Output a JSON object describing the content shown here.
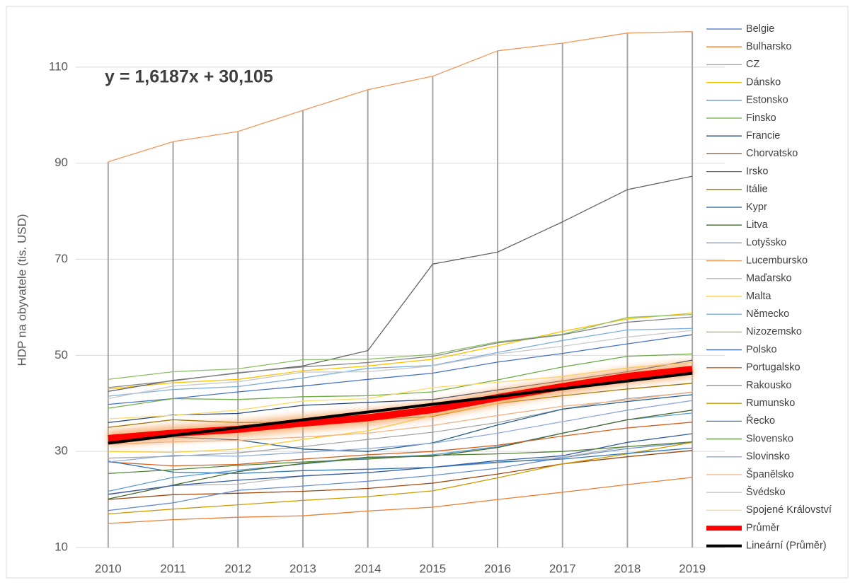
{
  "chart_data": {
    "type": "line",
    "y_label": "HDP na obyvatele (tis. USD)",
    "annotation": "y = 1,6187x + 30,105",
    "categories": [
      "2010",
      "2011",
      "2012",
      "2013",
      "2014",
      "2015",
      "2016",
      "2017",
      "2018",
      "2019"
    ],
    "ylim": [
      10,
      120
    ],
    "yticks": [
      10,
      30,
      50,
      70,
      90,
      110
    ],
    "grid": true,
    "drop_lines": true,
    "legend": "right",
    "series": [
      {
        "name": "Belgie",
        "color": "#4472C4",
        "values": [
          39.8,
          41.0,
          42.4,
          43.6,
          45.0,
          46.3,
          48.6,
          50.4,
          52.4,
          54.3
        ]
      },
      {
        "name": "Bulharsko",
        "color": "#ED7D31",
        "values": [
          15.0,
          15.8,
          16.3,
          16.6,
          17.6,
          18.4,
          20.0,
          21.5,
          23.1,
          24.6
        ]
      },
      {
        "name": "CZ",
        "color": "#A5A5A5",
        "values": [
          28.6,
          29.0,
          29.7,
          31.0,
          32.5,
          34.0,
          36.0,
          38.8,
          41.0,
          42.3
        ]
      },
      {
        "name": "Dánsko",
        "color": "#FFC000",
        "values": [
          43.0,
          44.3,
          45.0,
          46.8,
          47.8,
          49.2,
          52.0,
          55.0,
          57.6,
          58.8
        ]
      },
      {
        "name": "Estonsko",
        "color": "#5B9BD5",
        "values": [
          21.7,
          24.6,
          26.1,
          27.4,
          28.6,
          29.3,
          31.0,
          33.8,
          36.6,
          38.0
        ]
      },
      {
        "name": "Finsko",
        "color": "#70AD47",
        "values": [
          39.0,
          41.0,
          40.8,
          41.4,
          41.6,
          42.4,
          44.9,
          47.6,
          49.8,
          50.3
        ]
      },
      {
        "name": "Francie",
        "color": "#264478",
        "values": [
          36.0,
          37.6,
          37.9,
          39.6,
          40.2,
          40.8,
          42.8,
          44.7,
          46.6,
          49.0
        ]
      },
      {
        "name": "Chorvatsko",
        "color": "#9E480E",
        "values": [
          20.0,
          21.0,
          21.3,
          21.7,
          22.3,
          23.4,
          25.3,
          27.4,
          28.9,
          30.2
        ]
      },
      {
        "name": "Irsko",
        "color": "#636363",
        "values": [
          42.5,
          44.8,
          46.3,
          47.8,
          51.0,
          69.0,
          71.5,
          77.8,
          84.5,
          87.3
        ]
      },
      {
        "name": "Itálie",
        "color": "#997300",
        "values": [
          35.0,
          36.6,
          36.0,
          36.1,
          36.5,
          37.3,
          40.0,
          41.6,
          43.0,
          44.2
        ]
      },
      {
        "name": "Kypr",
        "color": "#255E91",
        "values": [
          32.0,
          33.0,
          32.4,
          30.5,
          30.0,
          31.8,
          35.5,
          38.8,
          40.4,
          41.8
        ]
      },
      {
        "name": "Litva",
        "color": "#43682B",
        "values": [
          20.1,
          23.0,
          25.8,
          27.5,
          28.8,
          29.0,
          30.8,
          33.8,
          36.6,
          38.6
        ]
      },
      {
        "name": "Lotyšsko",
        "color": "#698ED0",
        "values": [
          17.7,
          19.3,
          21.9,
          22.8,
          23.8,
          25.0,
          26.5,
          28.7,
          30.6,
          31.9
        ]
      },
      {
        "name": "Lucembursko",
        "color": "#F1975A",
        "values": [
          90.3,
          94.5,
          96.6,
          101.0,
          105.3,
          108.1,
          113.4,
          115.0,
          117.1,
          117.4
        ]
      },
      {
        "name": "Maďarsko",
        "color": "#B7B7B7",
        "values": [
          21.0,
          22.9,
          23.2,
          24.9,
          25.6,
          26.7,
          27.6,
          28.8,
          31.0,
          32.0
        ]
      },
      {
        "name": "Malta",
        "color": "#FFCD33",
        "values": [
          30.0,
          29.8,
          30.5,
          32.5,
          34.3,
          37.5,
          40.0,
          43.0,
          46.0,
          47.5
        ]
      },
      {
        "name": "Německo",
        "color": "#7CAFDD",
        "values": [
          41.5,
          42.9,
          43.5,
          45.3,
          47.3,
          47.9,
          50.6,
          53.1,
          55.3,
          55.6
        ]
      },
      {
        "name": "Nizozemsko",
        "color": "#8CC168",
        "values": [
          45.0,
          46.6,
          47.2,
          49.1,
          49.2,
          50.2,
          52.8,
          54.4,
          57.9,
          58.5
        ]
      },
      {
        "name": "Polsko",
        "color": "#335AA1",
        "values": [
          21.1,
          22.9,
          24.0,
          24.9,
          25.6,
          26.7,
          28.1,
          29.1,
          31.9,
          33.7
        ]
      },
      {
        "name": "Portugalsko",
        "color": "#D55E1E",
        "values": [
          27.8,
          27.0,
          27.3,
          28.4,
          29.3,
          30.0,
          31.3,
          33.2,
          34.9,
          36.1
        ]
      },
      {
        "name": "Rakousko",
        "color": "#848484",
        "values": [
          43.3,
          44.7,
          46.4,
          47.6,
          48.5,
          49.8,
          52.6,
          54.3,
          56.9,
          58.0
        ]
      },
      {
        "name": "Rumunsko",
        "color": "#CC9A00",
        "values": [
          17.0,
          18.0,
          18.9,
          19.8,
          20.6,
          21.8,
          24.5,
          27.4,
          29.5,
          31.9
        ]
      },
      {
        "name": "Řecko",
        "color": "#2E75B6",
        "values": [
          28.0,
          25.7,
          25.4,
          26.0,
          26.3,
          26.7,
          27.8,
          28.4,
          29.6,
          30.7
        ]
      },
      {
        "name": "Slovensko",
        "color": "#548235",
        "values": [
          25.4,
          26.2,
          27.1,
          27.8,
          28.4,
          29.2,
          29.5,
          30.0,
          31.0,
          32.0
        ]
      },
      {
        "name": "Slovinsko",
        "color": "#8FAADC",
        "values": [
          27.8,
          29.2,
          29.0,
          29.8,
          30.6,
          31.7,
          33.8,
          36.2,
          38.6,
          40.6
        ]
      },
      {
        "name": "Španělsko",
        "color": "#F4B183",
        "values": [
          31.5,
          32.0,
          32.3,
          33.0,
          33.8,
          35.4,
          37.5,
          39.4,
          40.7,
          42.4
        ]
      },
      {
        "name": "Švédsko",
        "color": "#C9C9C9",
        "values": [
          41.0,
          43.6,
          44.5,
          46.5,
          46.6,
          47.8,
          50.3,
          51.9,
          53.8,
          55.2
        ]
      },
      {
        "name": "Spojené Království",
        "color": "#FFD966",
        "values": [
          36.8,
          37.5,
          38.6,
          40.5,
          41.0,
          43.3,
          44.4,
          45.6,
          47.4,
          48.5
        ]
      },
      {
        "name": "Průměr",
        "color": "#FF0000",
        "style": "glow",
        "values": [
          32.7,
          33.8,
          34.6,
          35.9,
          37.0,
          38.7,
          41.2,
          43.5,
          45.6,
          47.1
        ]
      },
      {
        "name": "Lineární (Průměr)",
        "color": "#000000",
        "style": "trend",
        "values": [
          31.72,
          33.34,
          34.96,
          36.58,
          38.2,
          39.82,
          41.44,
          43.06,
          44.67,
          46.29
        ]
      }
    ]
  }
}
